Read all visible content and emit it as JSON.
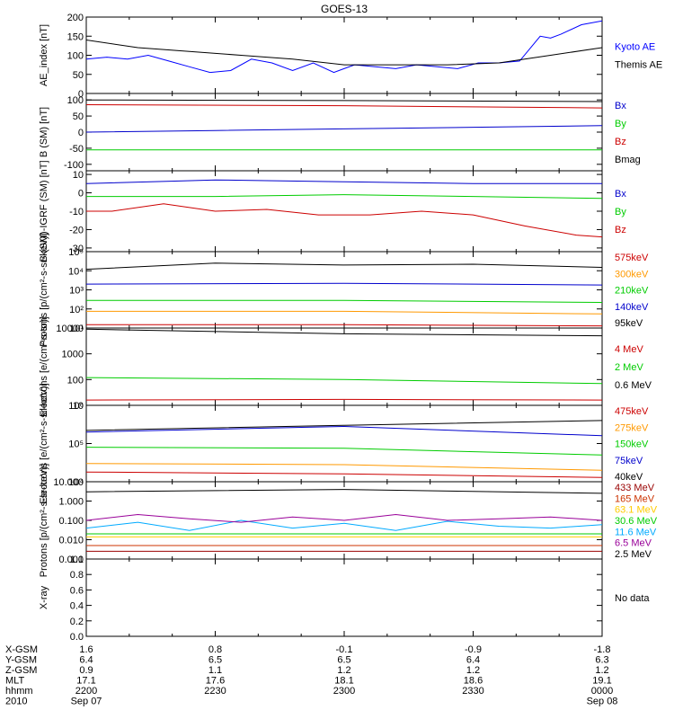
{
  "title": "GOES-13",
  "chart_data": [
    {
      "type": "line",
      "ylabel": "AE_index [nT]",
      "scale": "linear",
      "ylim": [
        0,
        200
      ],
      "yticks": [
        0,
        50,
        100,
        150,
        200
      ],
      "yticklabels": [
        "0",
        "50",
        "100",
        "150",
        "200"
      ],
      "series": [
        {
          "name": "Kyoto AE",
          "color": "#0000ff",
          "x": [
            0,
            0.04,
            0.08,
            0.12,
            0.16,
            0.2,
            0.24,
            0.28,
            0.32,
            0.36,
            0.4,
            0.44,
            0.48,
            0.52,
            0.56,
            0.6,
            0.64,
            0.68,
            0.72,
            0.76,
            0.8,
            0.84,
            0.88,
            0.9,
            0.92,
            0.96,
            1
          ],
          "y": [
            90,
            95,
            90,
            100,
            85,
            70,
            55,
            60,
            90,
            80,
            60,
            80,
            55,
            75,
            70,
            65,
            75,
            70,
            65,
            80,
            80,
            85,
            150,
            145,
            155,
            180,
            190
          ]
        },
        {
          "name": "Themis AE",
          "color": "#000000",
          "x": [
            0,
            0.1,
            0.2,
            0.3,
            0.4,
            0.5,
            0.6,
            0.7,
            0.8,
            0.9,
            1
          ],
          "y": [
            140,
            120,
            110,
            100,
            90,
            75,
            75,
            75,
            80,
            100,
            120
          ]
        }
      ]
    },
    {
      "type": "line",
      "ylabel": "B (SM) [nT]",
      "scale": "linear",
      "ylim": [
        -120,
        120
      ],
      "yticks": [
        -100,
        -50,
        0,
        50,
        100
      ],
      "yticklabels": [
        "-100",
        "-50",
        "0",
        "50",
        "100"
      ],
      "series": [
        {
          "name": "Bx",
          "color": "#0000cc",
          "x": [
            0,
            0.25,
            0.5,
            0.75,
            1
          ],
          "y": [
            0,
            5,
            10,
            15,
            20
          ]
        },
        {
          "name": "By",
          "color": "#00cc00",
          "x": [
            0,
            0.5,
            1
          ],
          "y": [
            -55,
            -55,
            -55
          ]
        },
        {
          "name": "Bz",
          "color": "#cc0000",
          "x": [
            0,
            0.5,
            1
          ],
          "y": [
            85,
            82,
            75
          ]
        },
        {
          "name": "Bmag",
          "color": "#000000",
          "x": [
            0,
            0.5,
            1
          ],
          "y": [
            100,
            98,
            95
          ]
        }
      ]
    },
    {
      "type": "line",
      "ylabel": "B (SM)-IGRF (SM) [nT]",
      "scale": "linear",
      "ylim": [
        -32,
        12
      ],
      "yticks": [
        -30,
        -20,
        -10,
        0,
        10
      ],
      "yticklabels": [
        "-30",
        "-20",
        "-10",
        "0",
        "10"
      ],
      "series": [
        {
          "name": "Bx",
          "color": "#0000cc",
          "x": [
            0,
            0.25,
            0.5,
            0.75,
            1
          ],
          "y": [
            5,
            7,
            6,
            5,
            5
          ]
        },
        {
          "name": "By",
          "color": "#00cc00",
          "x": [
            0,
            0.25,
            0.5,
            0.75,
            1
          ],
          "y": [
            -2,
            -2,
            -1,
            -2,
            -3
          ]
        },
        {
          "name": "Bz",
          "color": "#cc0000",
          "x": [
            0,
            0.05,
            0.15,
            0.25,
            0.35,
            0.45,
            0.55,
            0.65,
            0.75,
            0.85,
            0.95,
            1
          ],
          "y": [
            -10,
            -10,
            -6,
            -10,
            -9,
            -12,
            -12,
            -10,
            -12,
            -18,
            -23,
            -24
          ]
        }
      ]
    },
    {
      "type": "line",
      "ylabel": "Protons [p/(cm²-s-sr-keV)]",
      "scale": "log",
      "ylim": [
        10,
        100000
      ],
      "yticks": [
        10,
        100,
        1000,
        10000,
        100000
      ],
      "yticklabels": [
        "10¹",
        "10²",
        "10³",
        "10⁴",
        "10⁵"
      ],
      "series": [
        {
          "name": "575keV",
          "color": "#cc0000",
          "x": [
            0,
            0.5,
            1
          ],
          "y": [
            15,
            15,
            13
          ]
        },
        {
          "name": "300keV",
          "color": "#ff9900",
          "x": [
            0,
            0.5,
            1
          ],
          "y": [
            75,
            75,
            55
          ]
        },
        {
          "name": "210keV",
          "color": "#00cc00",
          "x": [
            0,
            0.5,
            1
          ],
          "y": [
            280,
            280,
            220
          ]
        },
        {
          "name": "140keV",
          "color": "#0000cc",
          "x": [
            0,
            0.5,
            1
          ],
          "y": [
            2000,
            2200,
            1800
          ]
        },
        {
          "name": "95keV",
          "color": "#000000",
          "x": [
            0,
            0.25,
            0.5,
            0.75,
            1
          ],
          "y": [
            12000,
            25000,
            20000,
            22000,
            15000
          ]
        }
      ]
    },
    {
      "type": "line",
      "ylabel": "Electrons [e/(cm²-s-sr)]",
      "scale": "log",
      "ylim": [
        10,
        10000
      ],
      "yticks": [
        10,
        100,
        1000,
        10000
      ],
      "yticklabels": [
        "10",
        "100",
        "1000",
        "10000"
      ],
      "series": [
        {
          "name": "4 MeV",
          "color": "#cc0000",
          "x": [
            0,
            0.5,
            1
          ],
          "y": [
            16,
            17,
            16
          ]
        },
        {
          "name": "2 MeV",
          "color": "#00cc00",
          "x": [
            0,
            0.5,
            1
          ],
          "y": [
            120,
            100,
            70
          ]
        },
        {
          "name": "0.6 MeV",
          "color": "#000000",
          "x": [
            0,
            0.5,
            1
          ],
          "y": [
            9000,
            6000,
            5000
          ]
        }
      ]
    },
    {
      "type": "line",
      "ylabel": "Electrons [e/(cm²-s-sr-keV)]",
      "scale": "log",
      "ylim": [
        10000,
        1000000
      ],
      "yticks": [
        10000,
        100000,
        1000000
      ],
      "yticklabels": [
        "10⁴",
        "10⁵",
        "10⁶"
      ],
      "series": [
        {
          "name": "475keV",
          "color": "#cc0000",
          "x": [
            0,
            0.5,
            1
          ],
          "y": [
            18000,
            16000,
            13000
          ]
        },
        {
          "name": "275keV",
          "color": "#ff9900",
          "x": [
            0,
            0.5,
            1
          ],
          "y": [
            30000,
            28000,
            20000
          ]
        },
        {
          "name": "150keV",
          "color": "#00cc00",
          "x": [
            0,
            0.5,
            1
          ],
          "y": [
            80000,
            75000,
            50000
          ]
        },
        {
          "name": "75keV",
          "color": "#0000cc",
          "x": [
            0,
            0.5,
            1
          ],
          "y": [
            200000,
            280000,
            160000
          ]
        },
        {
          "name": "40keV",
          "color": "#000000",
          "x": [
            0,
            0.5,
            1
          ],
          "y": [
            220000,
            300000,
            400000
          ]
        }
      ]
    },
    {
      "type": "line",
      "ylabel": "Protons [p/(cm²-s-sr-keV)]",
      "scale": "log",
      "ylim": [
        0.001,
        10
      ],
      "yticks": [
        0.001,
        0.01,
        0.1,
        1,
        10
      ],
      "yticklabels": [
        "0.001",
        "0.010",
        "0.100",
        "1.000",
        "10.000"
      ],
      "series": [
        {
          "name": "433 MeV",
          "color": "#990000",
          "x": [
            0,
            0.5,
            1
          ],
          "y": [
            0.0025,
            0.0025,
            0.0025
          ]
        },
        {
          "name": "165 MeV",
          "color": "#cc3300",
          "x": [
            0,
            0.5,
            1
          ],
          "y": [
            0.005,
            0.005,
            0.005
          ]
        },
        {
          "name": "63.1 MeV",
          "color": "#ffcc00",
          "x": [
            0,
            0.5,
            1
          ],
          "y": [
            0.014,
            0.014,
            0.014
          ]
        },
        {
          "name": "30.6 MeV",
          "color": "#00cc00",
          "x": [
            0,
            0.5,
            1
          ],
          "y": [
            0.02,
            0.02,
            0.02
          ]
        },
        {
          "name": "11.6 MeV",
          "color": "#00aaff",
          "x": [
            0,
            0.1,
            0.2,
            0.3,
            0.4,
            0.5,
            0.6,
            0.7,
            0.8,
            0.9,
            1
          ],
          "y": [
            0.04,
            0.08,
            0.03,
            0.1,
            0.04,
            0.07,
            0.03,
            0.09,
            0.05,
            0.04,
            0.06
          ]
        },
        {
          "name": "6.5 MeV",
          "color": "#990099",
          "x": [
            0,
            0.1,
            0.2,
            0.3,
            0.4,
            0.5,
            0.6,
            0.7,
            0.8,
            0.9,
            1
          ],
          "y": [
            0.1,
            0.2,
            0.12,
            0.08,
            0.15,
            0.1,
            0.2,
            0.1,
            0.12,
            0.15,
            0.1
          ]
        },
        {
          "name": "2.5 MeV",
          "color": "#000000",
          "x": [
            0,
            0.5,
            1
          ],
          "y": [
            3,
            4,
            2.5
          ]
        }
      ]
    },
    {
      "type": "line",
      "ylabel": "X-ray",
      "scale": "linear",
      "ylim": [
        0,
        1
      ],
      "yticks": [
        0,
        0.2,
        0.4,
        0.6,
        0.8,
        1
      ],
      "yticklabels": [
        "0.0",
        "0.2",
        "0.4",
        "0.6",
        "0.8",
        "1.0"
      ],
      "nodata": "No data",
      "series": []
    }
  ],
  "xaxis": {
    "row_labels": [
      "X-GSM",
      "Y-GSM",
      "Z-GSM",
      "MLT",
      "hhmm",
      "2010"
    ],
    "ticks": [
      {
        "x": 0,
        "values": [
          "1.6",
          "6.4",
          "0.9",
          "17.1",
          "2200",
          "Sep 07"
        ]
      },
      {
        "x": 0.25,
        "values": [
          "0.8",
          "6.5",
          "1.1",
          "17.6",
          "2230",
          ""
        ]
      },
      {
        "x": 0.5,
        "values": [
          "-0.1",
          "6.5",
          "1.2",
          "18.1",
          "2300",
          ""
        ]
      },
      {
        "x": 0.75,
        "values": [
          "-0.9",
          "6.4",
          "1.2",
          "18.6",
          "2330",
          ""
        ]
      },
      {
        "x": 1,
        "values": [
          "-1.8",
          "6.3",
          "1.2",
          "19.1",
          "0000",
          "Sep 08"
        ]
      }
    ]
  }
}
